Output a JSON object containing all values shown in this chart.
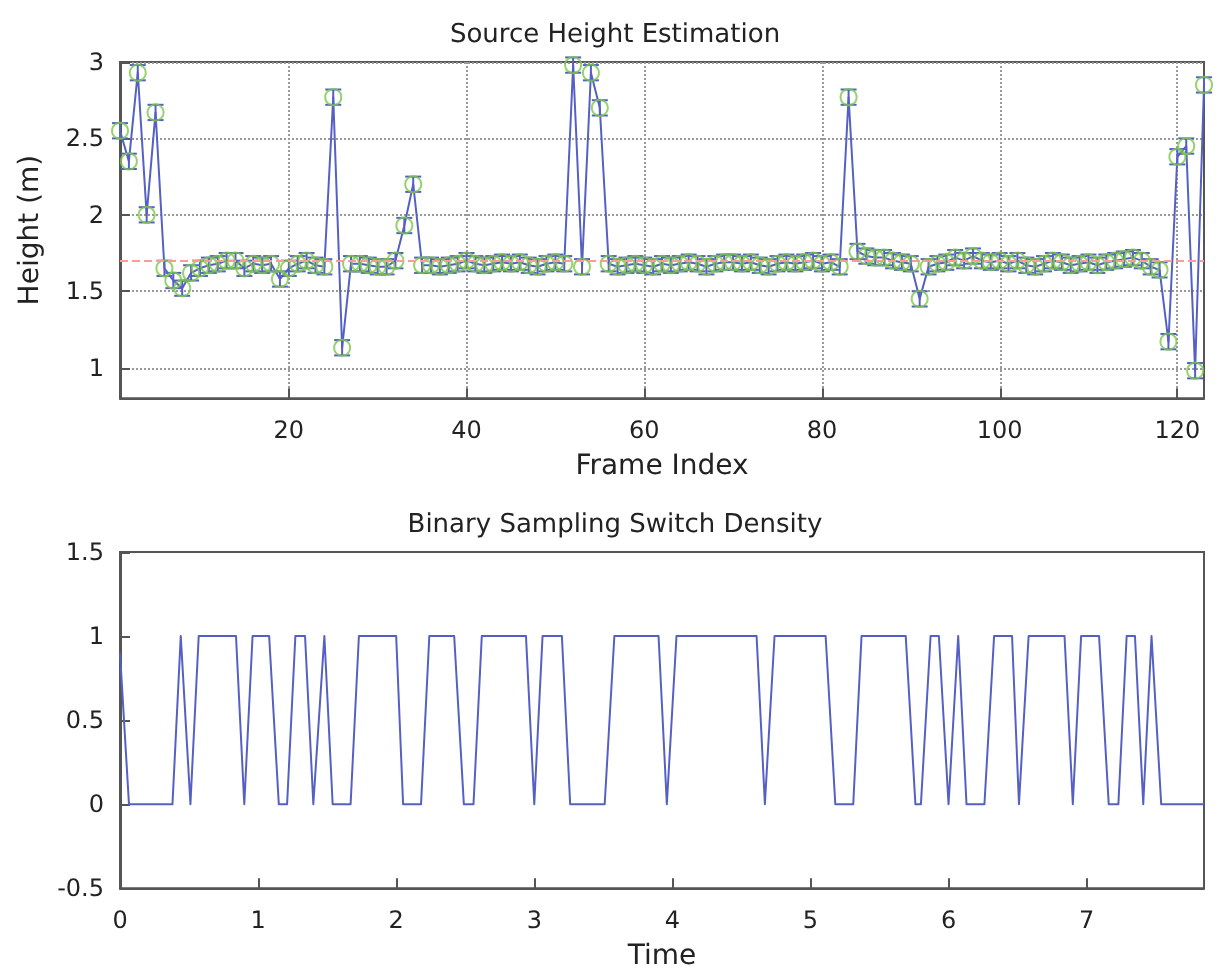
{
  "chart_data": [
    {
      "type": "line",
      "title": "Source Height Estimation",
      "xlabel": "Frame Index",
      "ylabel": "Height (m)",
      "x": [
        1,
        2,
        3,
        4,
        5,
        6,
        7,
        8,
        9,
        10,
        11,
        12,
        13,
        14,
        15,
        16,
        17,
        18,
        19,
        20,
        21,
        22,
        23,
        24,
        25,
        26,
        27,
        28,
        29,
        30,
        31,
        32,
        33,
        34,
        35,
        36,
        37,
        38,
        39,
        40,
        41,
        42,
        43,
        44,
        45,
        46,
        47,
        48,
        49,
        50,
        51,
        52,
        53,
        54,
        55,
        56,
        57,
        58,
        59,
        60,
        61,
        62,
        63,
        64,
        65,
        66,
        67,
        68,
        69,
        70,
        71,
        72,
        73,
        74,
        75,
        76,
        77,
        78,
        79,
        80,
        81,
        82,
        83,
        84,
        85,
        86,
        87,
        88,
        89,
        90,
        91,
        92,
        93,
        94,
        95,
        96,
        97,
        98,
        99,
        100,
        101,
        102,
        103,
        104,
        105,
        106,
        107,
        108,
        109,
        110,
        111,
        112,
        113,
        114,
        115,
        116,
        117,
        118,
        119,
        120,
        121,
        122,
        123
      ],
      "series": [
        {
          "type": "line",
          "color": "#5560c4",
          "marker": "none",
          "line_style": "solid",
          "values": [
            2.55,
            2.35,
            2.93,
            2.0,
            2.67,
            1.65,
            1.57,
            1.52,
            1.62,
            1.65,
            1.67,
            1.68,
            1.7,
            1.7,
            1.65,
            1.68,
            1.67,
            1.68,
            1.58,
            1.65,
            1.68,
            1.7,
            1.67,
            1.66,
            2.77,
            1.13,
            1.68,
            1.68,
            1.67,
            1.66,
            1.66,
            1.7,
            1.93,
            2.2,
            1.67,
            1.67,
            1.66,
            1.67,
            1.68,
            1.7,
            1.68,
            1.67,
            1.68,
            1.69,
            1.68,
            1.69,
            1.67,
            1.66,
            1.68,
            1.69,
            1.68,
            2.98,
            1.66,
            2.93,
            2.7,
            1.68,
            1.66,
            1.67,
            1.68,
            1.67,
            1.66,
            1.68,
            1.67,
            1.68,
            1.69,
            1.68,
            1.66,
            1.68,
            1.69,
            1.69,
            1.68,
            1.69,
            1.67,
            1.66,
            1.68,
            1.69,
            1.68,
            1.69,
            1.7,
            1.68,
            1.69,
            1.66,
            2.77,
            1.76,
            1.73,
            1.72,
            1.72,
            1.7,
            1.69,
            1.68,
            1.45,
            1.66,
            1.68,
            1.69,
            1.72,
            1.7,
            1.73,
            1.7,
            1.69,
            1.7,
            1.68,
            1.7,
            1.67,
            1.66,
            1.68,
            1.7,
            1.69,
            1.67,
            1.68,
            1.69,
            1.67,
            1.69,
            1.7,
            1.71,
            1.72,
            1.7,
            1.66,
            1.64,
            1.17,
            2.38,
            2.45,
            0.98,
            2.85
          ],
          "errors": [
            0.05,
            0.05,
            0.05,
            0.05,
            0.05,
            0.05,
            0.05,
            0.05,
            0.05,
            0.05,
            0.05,
            0.05,
            0.05,
            0.05,
            0.05,
            0.05,
            0.05,
            0.05,
            0.05,
            0.05,
            0.05,
            0.05,
            0.05,
            0.05,
            0.05,
            0.05,
            0.05,
            0.05,
            0.05,
            0.05,
            0.05,
            0.05,
            0.05,
            0.05,
            0.05,
            0.05,
            0.05,
            0.05,
            0.05,
            0.05,
            0.05,
            0.05,
            0.05,
            0.05,
            0.05,
            0.05,
            0.05,
            0.05,
            0.05,
            0.05,
            0.05,
            0.05,
            0.05,
            0.05,
            0.05,
            0.05,
            0.05,
            0.05,
            0.05,
            0.05,
            0.05,
            0.05,
            0.05,
            0.05,
            0.05,
            0.05,
            0.05,
            0.05,
            0.05,
            0.05,
            0.05,
            0.05,
            0.05,
            0.05,
            0.05,
            0.05,
            0.05,
            0.05,
            0.05,
            0.05,
            0.05,
            0.05,
            0.05,
            0.05,
            0.05,
            0.05,
            0.05,
            0.05,
            0.05,
            0.05,
            0.05,
            0.05,
            0.05,
            0.05,
            0.05,
            0.05,
            0.05,
            0.05,
            0.05,
            0.05,
            0.05,
            0.05,
            0.05,
            0.05,
            0.05,
            0.05,
            0.05,
            0.05,
            0.05,
            0.05,
            0.05,
            0.05,
            0.05,
            0.05,
            0.05,
            0.05,
            0.05,
            0.05,
            0.05,
            0.05,
            0.05,
            0.05,
            0.05
          ]
        },
        {
          "type": "scatter",
          "color": "#7cc84a",
          "marker": "circle",
          "values": [
            2.55,
            2.35,
            2.93,
            2.0,
            2.67,
            1.65,
            1.57,
            1.52,
            1.62,
            1.65,
            1.67,
            1.68,
            1.7,
            1.7,
            1.65,
            1.68,
            1.67,
            1.68,
            1.58,
            1.65,
            1.68,
            1.7,
            1.67,
            1.66,
            2.77,
            1.13,
            1.68,
            1.68,
            1.67,
            1.66,
            1.66,
            1.7,
            1.93,
            2.2,
            1.67,
            1.67,
            1.66,
            1.67,
            1.68,
            1.7,
            1.68,
            1.67,
            1.68,
            1.69,
            1.68,
            1.69,
            1.67,
            1.66,
            1.68,
            1.69,
            1.68,
            2.98,
            1.66,
            2.93,
            2.7,
            1.68,
            1.66,
            1.67,
            1.68,
            1.67,
            1.66,
            1.68,
            1.67,
            1.68,
            1.69,
            1.68,
            1.66,
            1.68,
            1.69,
            1.69,
            1.68,
            1.69,
            1.67,
            1.66,
            1.68,
            1.69,
            1.68,
            1.69,
            1.7,
            1.68,
            1.69,
            1.66,
            2.77,
            1.76,
            1.73,
            1.72,
            1.72,
            1.7,
            1.69,
            1.68,
            1.45,
            1.66,
            1.68,
            1.69,
            1.72,
            1.7,
            1.73,
            1.7,
            1.69,
            1.7,
            1.68,
            1.7,
            1.67,
            1.66,
            1.68,
            1.7,
            1.69,
            1.67,
            1.68,
            1.69,
            1.67,
            1.69,
            1.7,
            1.71,
            1.72,
            1.7,
            1.66,
            1.64,
            1.17,
            2.38,
            2.45,
            0.98,
            2.85
          ]
        }
      ],
      "ref_lines": [
        {
          "axis": "y",
          "value": 1.7,
          "color": "#ff9a9a",
          "line_style": "dashed"
        }
      ],
      "xlim": [
        1,
        123
      ],
      "xticks": [
        20,
        40,
        60,
        80,
        100,
        120
      ],
      "ylim": [
        0.8,
        3
      ],
      "yticks": [
        1,
        1.5,
        2,
        2.5,
        3
      ],
      "grid": true
    },
    {
      "type": "line",
      "title": "Binary Sampling Switch Density",
      "xlabel": "Time",
      "series": [
        {
          "color": "#5560c4",
          "marker": "none",
          "line_style": "solid",
          "x": [
            0,
            0.065,
            0.38,
            0.44,
            0.51,
            0.57,
            0.84,
            0.9,
            0.96,
            1.08,
            1.15,
            1.21,
            1.27,
            1.34,
            1.4,
            1.48,
            1.54,
            1.67,
            1.73,
            2.0,
            2.05,
            2.18,
            2.24,
            2.42,
            2.49,
            2.56,
            2.62,
            2.94,
            3.0,
            3.06,
            3.2,
            3.26,
            3.51,
            3.58,
            3.9,
            3.96,
            4.03,
            4.61,
            4.67,
            4.74,
            5.11,
            5.18,
            5.31,
            5.37,
            5.69,
            5.76,
            5.8,
            5.87,
            5.93,
            6.0,
            6.07,
            6.13,
            6.26,
            6.33,
            6.46,
            6.51,
            6.58,
            6.84,
            6.9,
            6.96,
            7.09,
            7.16,
            7.23,
            7.29,
            7.35,
            7.41,
            7.47,
            7.54,
            7.85
          ],
          "values": [
            0.9,
            0,
            0,
            1,
            0,
            1,
            1,
            0,
            1,
            1,
            0,
            0,
            1,
            1,
            0,
            1,
            0,
            0,
            1,
            1,
            0,
            0,
            1,
            1,
            0,
            0,
            1,
            1,
            0,
            1,
            1,
            0,
            0,
            1,
            1,
            0,
            1,
            1,
            0,
            1,
            1,
            0,
            0,
            1,
            1,
            0,
            0,
            1,
            1,
            0,
            1,
            0,
            0,
            1,
            1,
            0,
            1,
            1,
            0,
            1,
            1,
            0,
            0,
            1,
            1,
            0,
            1,
            0,
            0
          ]
        }
      ],
      "xlim": [
        0,
        7.85
      ],
      "xticks": [
        0,
        1,
        2,
        3,
        4,
        5,
        6,
        7
      ],
      "ylim": [
        -0.5,
        1.5
      ],
      "yticks": [
        -0.5,
        0,
        0.5,
        1,
        1.5
      ]
    }
  ]
}
